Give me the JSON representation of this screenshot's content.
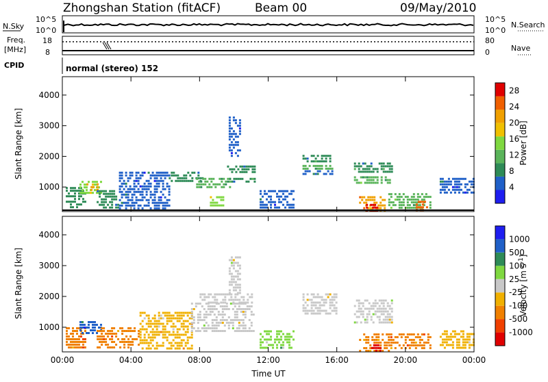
{
  "header": {
    "title": "Zhongshan Station (fitACF)",
    "beam": "Beam 00",
    "date": "09/May/2010"
  },
  "status_strips": {
    "nsky_label": "N.Sky",
    "nsky_ticks": [
      "10^5",
      "10^0"
    ],
    "nsearch_label": "N.Search",
    "nsearch_ticks": [
      "10^5",
      "10^0"
    ],
    "freq_label_line1": "Freq.",
    "freq_label_line2": "[MHz]",
    "freq_ticks": [
      "18",
      "8"
    ],
    "nave_label": "Nave",
    "nave_ticks": [
      "80",
      "0"
    ],
    "cpid_label": "CPID",
    "cpid_text": "normal (stereo) 152"
  },
  "colors": {
    "power_scale": [
      "#1e1ef0",
      "#2060c8",
      "#2e8b57",
      "#5ab45a",
      "#7fd840",
      "#f0c000",
      "#f0a000",
      "#f06000",
      "#e00000"
    ],
    "velocity_scale": [
      "#e00000",
      "#f04000",
      "#f08000",
      "#f0b000",
      "#c8c8c8",
      "#7fd840",
      "#2e8b57",
      "#2060c8",
      "#1e1ef0"
    ]
  },
  "chart_data": [
    {
      "type": "heatmap",
      "panel": "power",
      "ylabel": "Slant Range [km]",
      "yticks": [
        "1000",
        "2000",
        "3000",
        "4000"
      ],
      "ylim": [
        200,
        4600
      ],
      "xticks": [
        "00:00",
        "04:00",
        "08:00",
        "12:00",
        "16:00",
        "20:00",
        "00:00"
      ],
      "xlim_hours": [
        0,
        24
      ],
      "colorbar": {
        "label": "Power [dB]",
        "ticks": [
          "4",
          "8",
          "12",
          "16",
          "20",
          "24",
          "28"
        ],
        "range": [
          0,
          30
        ]
      },
      "regions": [
        {
          "t0": 0.2,
          "t1": 1.3,
          "r0": 300,
          "r1": 1000,
          "value": 8
        },
        {
          "t0": 1.0,
          "t1": 2.2,
          "r0": 800,
          "r1": 1200,
          "value": 14
        },
        {
          "t0": 1.4,
          "t1": 2.0,
          "r0": 880,
          "r1": 1120,
          "value": 20
        },
        {
          "t0": 2.0,
          "t1": 3.2,
          "r0": 300,
          "r1": 900,
          "value": 7
        },
        {
          "t0": 3.3,
          "t1": 6.2,
          "r0": 300,
          "r1": 1500,
          "value": 5
        },
        {
          "t0": 6.2,
          "t1": 8.2,
          "r0": 1200,
          "r1": 1500,
          "value": 7
        },
        {
          "t0": 7.8,
          "t1": 9.8,
          "r0": 1000,
          "r1": 1300,
          "value": 12
        },
        {
          "t0": 8.6,
          "t1": 9.4,
          "r0": 400,
          "r1": 700,
          "value": 16
        },
        {
          "t0": 9.6,
          "t1": 11.2,
          "r0": 1500,
          "r1": 1700,
          "value": 8
        },
        {
          "t0": 9.6,
          "t1": 11.2,
          "r0": 1150,
          "r1": 1300,
          "value": 9
        },
        {
          "t0": 9.7,
          "t1": 10.3,
          "r0": 2000,
          "r1": 3300,
          "value": 6
        },
        {
          "t0": 11.5,
          "t1": 13.5,
          "r0": 300,
          "r1": 900,
          "value": 5
        },
        {
          "t0": 14.0,
          "t1": 15.7,
          "r0": 1800,
          "r1": 2050,
          "value": 8
        },
        {
          "t0": 14.0,
          "t1": 15.7,
          "r0": 1550,
          "r1": 1720,
          "value": 10
        },
        {
          "t0": 14.0,
          "t1": 15.7,
          "r0": 1400,
          "r1": 1550,
          "value": 6
        },
        {
          "t0": 17.0,
          "t1": 19.2,
          "r0": 1500,
          "r1": 1800,
          "value": 8
        },
        {
          "t0": 17.0,
          "t1": 19.2,
          "r0": 1100,
          "r1": 1350,
          "value": 11
        },
        {
          "t0": 17.3,
          "t1": 18.8,
          "r0": 250,
          "r1": 700,
          "value": 20
        },
        {
          "t0": 17.7,
          "t1": 18.3,
          "r0": 250,
          "r1": 450,
          "value": 28
        },
        {
          "t0": 19.0,
          "t1": 21.5,
          "r0": 300,
          "r1": 800,
          "value": 12
        },
        {
          "t0": 20.6,
          "t1": 21.3,
          "r0": 250,
          "r1": 550,
          "value": 26
        },
        {
          "t0": 22.0,
          "t1": 24.0,
          "r0": 800,
          "r1": 1300,
          "value": 5
        }
      ]
    },
    {
      "type": "heatmap",
      "panel": "velocity",
      "ylabel": "Slant Range [km]",
      "yticks": [
        "1000",
        "2000",
        "3000",
        "4000"
      ],
      "ylim": [
        200,
        4600
      ],
      "xticks": [
        "00:00",
        "04:00",
        "08:00",
        "12:00",
        "16:00",
        "20:00",
        "00:00"
      ],
      "xlabel": "Time UT",
      "xlim_hours": [
        0,
        24
      ],
      "colorbar": {
        "label": "Velocity [m s^-1]",
        "ticks": [
          "-1000",
          "-500",
          "-100",
          "-25",
          "25",
          "100",
          "500",
          "1000"
        ],
        "range": [
          -1500,
          1500
        ]
      },
      "regions": [
        {
          "t0": 0.2,
          "t1": 1.3,
          "r0": 300,
          "r1": 1000,
          "value": -300
        },
        {
          "t0": 1.0,
          "t1": 2.2,
          "r0": 800,
          "r1": 1200,
          "value": 600
        },
        {
          "t0": 2.0,
          "t1": 4.5,
          "r0": 300,
          "r1": 1000,
          "value": -300
        },
        {
          "t0": 4.5,
          "t1": 7.5,
          "r0": 300,
          "r1": 1500,
          "value": -60
        },
        {
          "t0": 7.5,
          "t1": 11.2,
          "r0": 900,
          "r1": 1800,
          "value": 0
        },
        {
          "t0": 8.0,
          "t1": 11.0,
          "r0": 1800,
          "r1": 2100,
          "value": 0
        },
        {
          "t0": 9.7,
          "t1": 10.3,
          "r0": 2100,
          "r1": 3300,
          "value": 0
        },
        {
          "t0": 11.5,
          "t1": 13.5,
          "r0": 300,
          "r1": 900,
          "value": 50
        },
        {
          "t0": 14.0,
          "t1": 16.0,
          "r0": 1400,
          "r1": 2100,
          "value": 0
        },
        {
          "t0": 17.0,
          "t1": 19.2,
          "r0": 1100,
          "r1": 1900,
          "value": 0
        },
        {
          "t0": 17.3,
          "t1": 19.0,
          "r0": 250,
          "r1": 800,
          "value": -250
        },
        {
          "t0": 18.0,
          "t1": 18.6,
          "r0": 250,
          "r1": 450,
          "value": -1200
        },
        {
          "t0": 19.0,
          "t1": 21.5,
          "r0": 300,
          "r1": 800,
          "value": -300
        },
        {
          "t0": 22.0,
          "t1": 24.0,
          "r0": 300,
          "r1": 900,
          "value": -50
        }
      ]
    }
  ]
}
